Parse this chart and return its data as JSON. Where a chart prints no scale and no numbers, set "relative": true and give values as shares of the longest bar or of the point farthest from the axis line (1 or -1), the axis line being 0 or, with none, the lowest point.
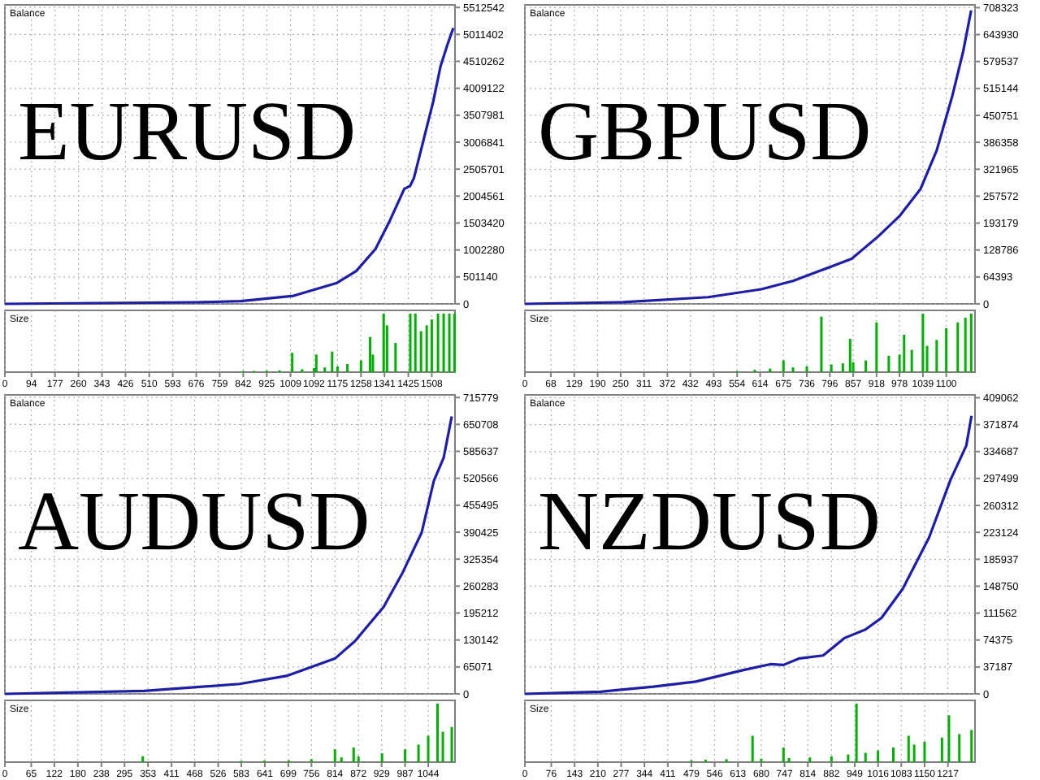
{
  "chart_data": [
    {
      "type": "line",
      "title": "EURUSD",
      "ylabel": "Balance",
      "xlim": [
        0,
        1590
      ],
      "ylim": [
        0,
        5560000
      ],
      "xticks": [
        0,
        94,
        177,
        260,
        343,
        426,
        510,
        593,
        676,
        759,
        842,
        925,
        1009,
        1092,
        1175,
        1258,
        1341,
        1425,
        1508
      ],
      "yticks": [
        0,
        501140,
        1002280,
        1503420,
        2004561,
        2505701,
        3006841,
        3507981,
        4009122,
        4510262,
        5011402,
        5512542
      ],
      "tick_labels": "y",
      "grid": true,
      "series": [
        {
          "color": "#1c1cb4",
          "x": [
            0,
            680,
            833,
            1020,
            1173,
            1241,
            1309,
            1360,
            1411,
            1431,
            1445,
            1479,
            1513,
            1539,
            1564,
            1584
          ],
          "values": [
            0,
            30000,
            50000,
            150000,
            390000,
            610000,
            1020000,
            1550000,
            2140000,
            2190000,
            2340000,
            3050000,
            3760000,
            4420000,
            4830000,
            5130000
          ]
        }
      ]
    },
    {
      "type": "bar",
      "ylabel": "Size",
      "relative": true,
      "xlim": [
        0,
        1590
      ],
      "xticks": [
        0,
        94,
        177,
        260,
        343,
        426,
        510,
        593,
        676,
        759,
        842,
        925,
        1009,
        1092,
        1175,
        1258,
        1341,
        1425,
        1508
      ],
      "tick_labels": "x",
      "grid": "x",
      "series": [
        {
          "color": "#00b000",
          "x": [
            842,
            880,
            925,
            970,
            1015,
            1050,
            1092,
            1100,
            1130,
            1156,
            1175,
            1210,
            1258,
            1290,
            1300,
            1338,
            1350,
            1380,
            1432,
            1450,
            1470,
            1490,
            1508,
            1530,
            1550,
            1570,
            1588
          ],
          "values": [
            0.02,
            0.02,
            0.025,
            0.03,
            0.33,
            0.05,
            0.07,
            0.3,
            0.08,
            0.35,
            0.1,
            0.14,
            0.2,
            0.6,
            0.3,
            1,
            0.8,
            0.5,
            1,
            1,
            0.7,
            0.8,
            0.9,
            1,
            1,
            1,
            1
          ]
        }
      ]
    },
    {
      "type": "line",
      "title": "GBPUSD",
      "ylabel": "Balance",
      "xlim": [
        0,
        1175
      ],
      "ylim": [
        0,
        715000
      ],
      "xticks": [
        0,
        68,
        129,
        190,
        250,
        311,
        372,
        432,
        493,
        554,
        614,
        675,
        736,
        796,
        857,
        918,
        978,
        1039,
        1100
      ],
      "yticks": [
        0,
        64393,
        128786,
        193179,
        257572,
        321965,
        386358,
        450751,
        515144,
        579537,
        643930,
        708323
      ],
      "tick_labels": "y",
      "grid": true,
      "series": [
        {
          "color": "#1c1cb4",
          "x": [
            0,
            257,
            478,
            617,
            700,
            770,
            853,
            922,
            978,
            1033,
            1075,
            1116,
            1144,
            1165
          ],
          "values": [
            0,
            4000,
            16000,
            35000,
            55000,
            79000,
            108000,
            161000,
            210000,
            275000,
            367000,
            498000,
            603000,
            702000
          ]
        }
      ]
    },
    {
      "type": "bar",
      "ylabel": "Size",
      "relative": true,
      "xlim": [
        0,
        1175
      ],
      "xticks": [
        0,
        68,
        129,
        190,
        250,
        311,
        372,
        432,
        493,
        554,
        614,
        675,
        736,
        796,
        857,
        918,
        978,
        1039,
        1100
      ],
      "tick_labels": "x",
      "grid": "x",
      "series": [
        {
          "color": "#00b000",
          "x": [
            554,
            600,
            640,
            675,
            700,
            736,
            774,
            800,
            830,
            849,
            857,
            890,
            918,
            950,
            978,
            990,
            1010,
            1039,
            1050,
            1075,
            1100,
            1130,
            1150,
            1165
          ],
          "values": [
            0.02,
            0.04,
            0.06,
            0.2,
            0.08,
            0.1,
            0.95,
            0.13,
            0.15,
            0.57,
            0.17,
            0.2,
            0.85,
            0.28,
            0.3,
            0.64,
            0.38,
            1,
            0.45,
            0.55,
            0.75,
            0.85,
            0.93,
            1
          ]
        }
      ]
    },
    {
      "type": "line",
      "title": "AUDUSD",
      "ylabel": "Balance",
      "xlim": [
        0,
        1110
      ],
      "ylim": [
        0,
        722000
      ],
      "xticks": [
        0,
        65,
        122,
        180,
        238,
        295,
        353,
        411,
        468,
        526,
        583,
        641,
        699,
        756,
        814,
        872,
        929,
        987,
        1044
      ],
      "yticks": [
        0,
        65071,
        130142,
        195212,
        260283,
        325354,
        390425,
        455495,
        520566,
        585637,
        650708,
        715779
      ],
      "tick_labels": "y",
      "grid": true,
      "series": [
        {
          "color": "#1c1cb4",
          "x": [
            0,
            343,
            579,
            697,
            815,
            863,
            934,
            981,
            1028,
            1058,
            1082,
            1102
          ],
          "values": [
            0,
            7000,
            24000,
            44000,
            86000,
            127000,
            210000,
            293000,
            390000,
            515000,
            570000,
            670000
          ]
        }
      ]
    },
    {
      "type": "bar",
      "ylabel": "Size",
      "relative": true,
      "xlim": [
        0,
        1110
      ],
      "xticks": [
        0,
        65,
        122,
        180,
        238,
        295,
        353,
        411,
        468,
        526,
        583,
        641,
        699,
        756,
        814,
        872,
        929,
        987,
        1044
      ],
      "tick_labels": "x",
      "grid": "x",
      "series": [
        {
          "color": "#00b000",
          "x": [
            340,
            583,
            640,
            700,
            756,
            814,
            830,
            860,
            872,
            930,
            987,
            1020,
            1044,
            1067,
            1080,
            1102
          ],
          "values": [
            0.1,
            0.02,
            0.025,
            0.03,
            0.05,
            0.22,
            0.08,
            0.25,
            0.1,
            0.15,
            0.22,
            0.3,
            0.45,
            1,
            0.52,
            0.6
          ]
        }
      ]
    },
    {
      "type": "line",
      "title": "NZDUSD",
      "ylabel": "Balance",
      "xlim": [
        0,
        1295
      ],
      "ylim": [
        0,
        413000
      ],
      "xticks": [
        0,
        76,
        143,
        210,
        277,
        344,
        411,
        479,
        546,
        613,
        680,
        747,
        814,
        882,
        949,
        1016,
        1083,
        1150,
        1217
      ],
      "yticks": [
        0,
        37187,
        74375,
        111562,
        148750,
        185937,
        223124,
        260312,
        297499,
        334687,
        371874,
        409062
      ],
      "tick_labels": "y",
      "grid": true,
      "series": [
        {
          "color": "#1c1cb4",
          "x": [
            0,
            218,
            370,
            492,
            629,
            706,
            744,
            790,
            858,
            919,
            980,
            1026,
            1087,
            1163,
            1224,
            1270,
            1285
          ],
          "values": [
            0,
            3000,
            10000,
            17000,
            33000,
            41000,
            40000,
            49000,
            53000,
            77000,
            89000,
            105000,
            145000,
            216000,
            295000,
            343000,
            384000
          ]
        }
      ]
    },
    {
      "type": "bar",
      "ylabel": "Size",
      "relative": true,
      "xlim": [
        0,
        1295
      ],
      "xticks": [
        0,
        76,
        143,
        210,
        277,
        344,
        411,
        479,
        546,
        613,
        680,
        747,
        814,
        882,
        949,
        1016,
        1083,
        1150,
        1217
      ],
      "tick_labels": "x",
      "grid": "x",
      "series": [
        {
          "color": "#00b000",
          "x": [
            479,
            520,
            580,
            655,
            680,
            744,
            760,
            820,
            882,
            930,
            954,
            980,
            1016,
            1060,
            1104,
            1120,
            1150,
            1200,
            1220,
            1250,
            1285
          ],
          "values": [
            0.03,
            0.04,
            0.05,
            0.45,
            0.06,
            0.25,
            0.07,
            0.08,
            0.1,
            0.13,
            1,
            0.16,
            0.2,
            0.25,
            0.45,
            0.3,
            0.35,
            0.42,
            0.8,
            0.48,
            0.55
          ]
        }
      ]
    }
  ]
}
